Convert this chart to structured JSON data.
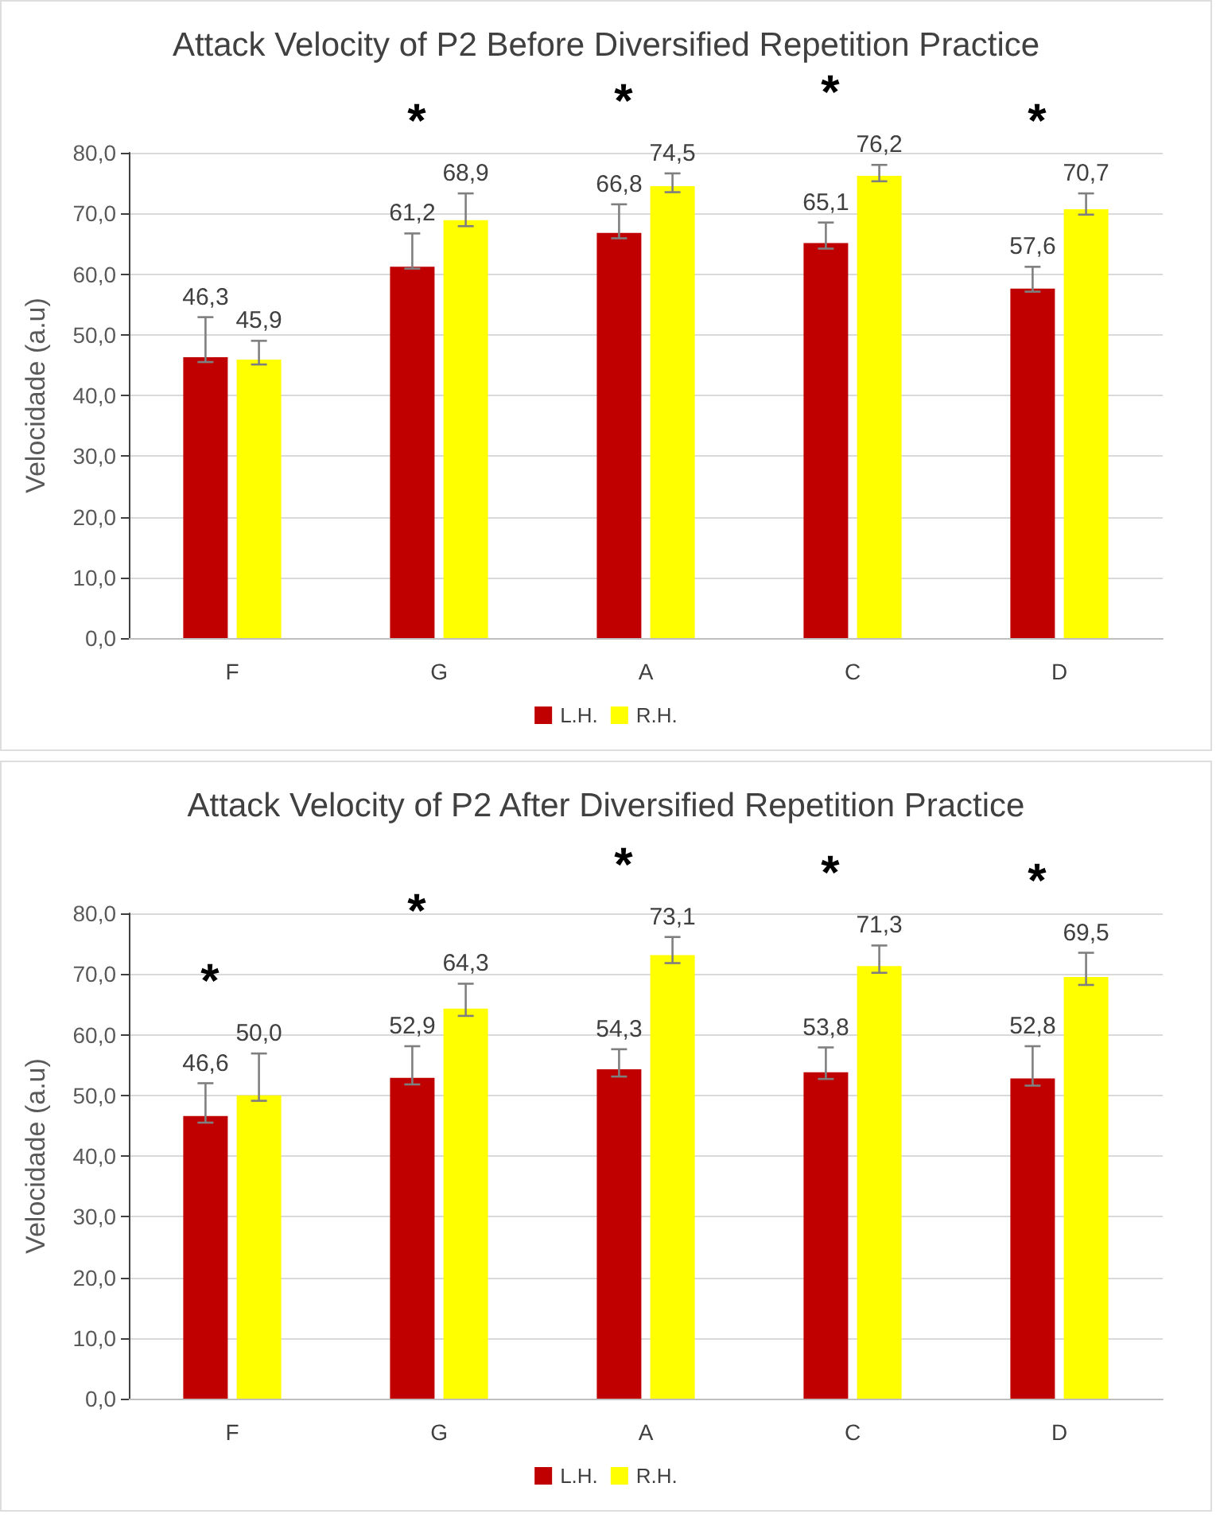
{
  "chart_data": [
    {
      "type": "bar",
      "title": "Attack Velocity of P2 Before Diversified Repetition Practice",
      "ylabel": "Velocidade (a.u)",
      "categories": [
        "F",
        "G",
        "A",
        "C",
        "D"
      ],
      "ylim": [
        0,
        80
      ],
      "yticks": [
        {
          "value": 0,
          "label": "0,0"
        },
        {
          "value": 10,
          "label": "10,0"
        },
        {
          "value": 20,
          "label": "20,0"
        },
        {
          "value": 30,
          "label": "30,0"
        },
        {
          "value": 40,
          "label": "40,0"
        },
        {
          "value": 50,
          "label": "50,0"
        },
        {
          "value": 60,
          "label": "60,0"
        },
        {
          "value": 70,
          "label": "70,0"
        },
        {
          "value": 80,
          "label": "80,0"
        }
      ],
      "grid": "y",
      "legend": "bottom",
      "series": [
        {
          "name": "L.H.",
          "color": "#c00000",
          "values": [
            46.3,
            61.2,
            66.8,
            65.1,
            57.6
          ],
          "value_labels": [
            "46,3",
            "61,2",
            "66,8",
            "65,1",
            "57,6"
          ],
          "errors": [
            [
              45.5,
              52.9
            ],
            [
              60.9,
              66.7
            ],
            [
              65.9,
              71.5
            ],
            [
              64.2,
              68.5
            ],
            [
              57.1,
              61.2
            ]
          ]
        },
        {
          "name": "R.H.",
          "color": "#ffff00",
          "values": [
            45.9,
            68.9,
            74.5,
            76.2,
            70.7
          ],
          "value_labels": [
            "45,9",
            "68,9",
            "74,5",
            "76,2",
            "70,7"
          ],
          "errors": [
            [
              45.1,
              49.0
            ],
            [
              67.9,
              73.3
            ],
            [
              73.5,
              76.6
            ],
            [
              75.3,
              78.0
            ],
            [
              69.8,
              73.3
            ]
          ]
        }
      ],
      "annotations": [
        "*",
        "*",
        "*",
        "*"
      ]
    },
    {
      "type": "bar",
      "title": "Attack Velocity of P2 After Diversified Repetition Practice",
      "ylabel": "Velocidade (a.u)",
      "categories": [
        "F",
        "G",
        "A",
        "C",
        "D"
      ],
      "ylim": [
        0,
        80
      ],
      "yticks": [
        {
          "value": 0,
          "label": "0,0"
        },
        {
          "value": 10,
          "label": "10,0"
        },
        {
          "value": 20,
          "label": "20,0"
        },
        {
          "value": 30,
          "label": "30,0"
        },
        {
          "value": 40,
          "label": "40,0"
        },
        {
          "value": 50,
          "label": "50,0"
        },
        {
          "value": 60,
          "label": "60,0"
        },
        {
          "value": 70,
          "label": "70,0"
        },
        {
          "value": 80,
          "label": "80,0"
        }
      ],
      "grid": "y",
      "legend": "bottom",
      "series": [
        {
          "name": "L.H.",
          "color": "#c00000",
          "values": [
            46.6,
            52.9,
            54.3,
            53.8,
            52.8
          ],
          "value_labels": [
            "46,6",
            "52,9",
            "54,3",
            "53,8",
            "52,8"
          ],
          "errors": [
            [
              45.5,
              52.0
            ],
            [
              51.8,
              58.1
            ],
            [
              53.1,
              57.6
            ],
            [
              52.7,
              57.9
            ],
            [
              51.6,
              58.1
            ]
          ]
        },
        {
          "name": "R.H.",
          "color": "#ffff00",
          "values": [
            50.0,
            64.3,
            73.1,
            71.3,
            69.5
          ],
          "value_labels": [
            "50,0",
            "64,3",
            "73,1",
            "71,3",
            "69,5"
          ],
          "errors": [
            [
              49.1,
              56.9
            ],
            [
              63.1,
              68.4
            ],
            [
              71.8,
              76.1
            ],
            [
              70.2,
              74.7
            ],
            [
              68.2,
              73.5
            ]
          ]
        }
      ],
      "annotations": [
        "*",
        "*",
        "*",
        "*",
        "*"
      ]
    }
  ]
}
